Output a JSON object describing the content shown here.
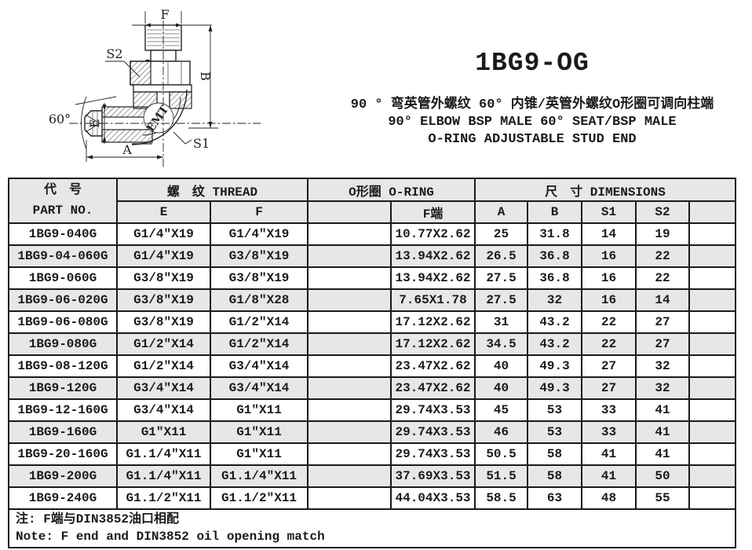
{
  "colors": {
    "ink": "#1a1a1a",
    "stripe": "#e7e7e7",
    "background": "#ffffff"
  },
  "header": {
    "part_code": "1BG9-OG",
    "subtitle_cn": "90 ° 弯英管外螺纹 60° 内锥/英管外螺纹O形圈可调向柱端",
    "subtitle_en1": "90°  ELBOW BSP MALE 60°  SEAT/BSP MALE",
    "subtitle_en2": "O-RING ADJUSTABLE STUD END"
  },
  "drawing": {
    "labels": {
      "f": "F",
      "b": "B",
      "a": "A",
      "e": "E",
      "s1": "S1",
      "s2": "S2",
      "angle": "60°",
      "brand": "EMT"
    }
  },
  "table": {
    "group_part_cn": "代　号",
    "group_part_en": "PART  NO.",
    "group_thread": "螺　纹  THREAD",
    "group_oring": "O形圈 O-RING",
    "group_dimensions": "尺　寸    DIMENSIONS",
    "sub_headers": [
      "E",
      "F",
      "",
      "F端",
      "A",
      "B",
      "S1",
      "S2",
      ""
    ],
    "row_keys": [
      "part",
      "e",
      "f",
      "oring_blank",
      "f_end",
      "a",
      "b",
      "s1",
      "s2",
      "extra"
    ],
    "rows": [
      {
        "part": "1BG9-040G",
        "e": "G1/4″X19",
        "f": "G1/4″X19",
        "oring_blank": "",
        "f_end": "10.77X2.62",
        "a": "25",
        "b": "31.8",
        "s1": "14",
        "s2": "19",
        "extra": ""
      },
      {
        "part": "1BG9-04-060G",
        "e": "G1/4″X19",
        "f": "G3/8″X19",
        "oring_blank": "",
        "f_end": "13.94X2.62",
        "a": "26.5",
        "b": "36.8",
        "s1": "16",
        "s2": "22",
        "extra": ""
      },
      {
        "part": "1BG9-060G",
        "e": "G3/8″X19",
        "f": "G3/8″X19",
        "oring_blank": "",
        "f_end": "13.94X2.62",
        "a": "27.5",
        "b": "36.8",
        "s1": "16",
        "s2": "22",
        "extra": ""
      },
      {
        "part": "1BG9-06-020G",
        "e": "G3/8″X19",
        "f": "G1/8″X28",
        "oring_blank": "",
        "f_end": "7.65X1.78",
        "a": "27.5",
        "b": "32",
        "s1": "16",
        "s2": "14",
        "extra": ""
      },
      {
        "part": "1BG9-06-080G",
        "e": "G3/8″X19",
        "f": "G1/2″X14",
        "oring_blank": "",
        "f_end": "17.12X2.62",
        "a": "31",
        "b": "43.2",
        "s1": "22",
        "s2": "27",
        "extra": ""
      },
      {
        "part": "1BG9-080G",
        "e": "G1/2″X14",
        "f": "G1/2″X14",
        "oring_blank": "",
        "f_end": "17.12X2.62",
        "a": "34.5",
        "b": "43.2",
        "s1": "22",
        "s2": "27",
        "extra": ""
      },
      {
        "part": "1BG9-08-120G",
        "e": "G1/2″X14",
        "f": "G3/4″X14",
        "oring_blank": "",
        "f_end": "23.47X2.62",
        "a": "40",
        "b": "49.3",
        "s1": "27",
        "s2": "32",
        "extra": ""
      },
      {
        "part": "1BG9-120G",
        "e": "G3/4″X14",
        "f": "G3/4″X14",
        "oring_blank": "",
        "f_end": "23.47X2.62",
        "a": "40",
        "b": "49.3",
        "s1": "27",
        "s2": "32",
        "extra": ""
      },
      {
        "part": "1BG9-12-160G",
        "e": "G3/4″X14",
        "f": "G1″X11",
        "oring_blank": "",
        "f_end": "29.74X3.53",
        "a": "45",
        "b": "53",
        "s1": "33",
        "s2": "41",
        "extra": ""
      },
      {
        "part": "1BG9-160G",
        "e": "G1″X11",
        "f": "G1″X11",
        "oring_blank": "",
        "f_end": "29.74X3.53",
        "a": "46",
        "b": "53",
        "s1": "33",
        "s2": "41",
        "extra": ""
      },
      {
        "part": "1BG9-20-160G",
        "e": "G1.1/4″X11",
        "f": "G1″X11",
        "oring_blank": "",
        "f_end": "29.74X3.53",
        "a": "50.5",
        "b": "58",
        "s1": "41",
        "s2": "41",
        "extra": ""
      },
      {
        "part": "1BG9-200G",
        "e": "G1.1/4″X11",
        "f": "G1.1/4″X11",
        "oring_blank": "",
        "f_end": "37.69X3.53",
        "a": "51.5",
        "b": "58",
        "s1": "41",
        "s2": "50",
        "extra": ""
      },
      {
        "part": "1BG9-240G",
        "e": "G1.1/2″X11",
        "f": "G1.1/2″X11",
        "oring_blank": "",
        "f_end": "44.04X3.53",
        "a": "58.5",
        "b": "63",
        "s1": "48",
        "s2": "55",
        "extra": ""
      }
    ]
  },
  "note": {
    "cn": "注: F端与DIN3852油口相配",
    "en": "Note: F end and DIN3852 oil opening match"
  }
}
